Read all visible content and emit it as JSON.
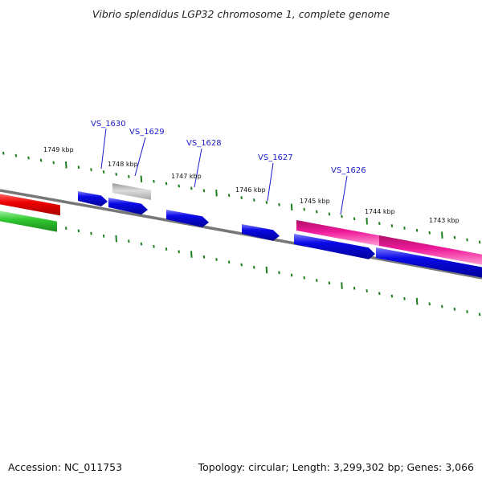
{
  "title": "Vibrio splendidus LGP32 chromosome 1, complete genome",
  "footer": {
    "accession": "Accession: NC_011753",
    "summary": "Topology: circular; Length: 3,299,302 bp; Genes: 3,066"
  },
  "kbp_labels": [
    "1749 kbp",
    "1748 kbp",
    "1747 kbp",
    "1746 kbp",
    "1745 kbp",
    "1744 kbp",
    "1743 kbp"
  ],
  "gene_labels": [
    "VS_1630",
    "VS_1629",
    "VS_1628",
    "VS_1627",
    "VS_1626"
  ],
  "colors": {
    "backbone": "#7a7a7a",
    "tick": "#1e7d1e",
    "gene_blue": "#0a0ae6",
    "gene_grey": "#bdbdbd",
    "gene_red": "#ee0000",
    "gene_green": "#33cc33",
    "gene_pink": "#ee1a9a",
    "label_blue": "#1a1acc"
  }
}
